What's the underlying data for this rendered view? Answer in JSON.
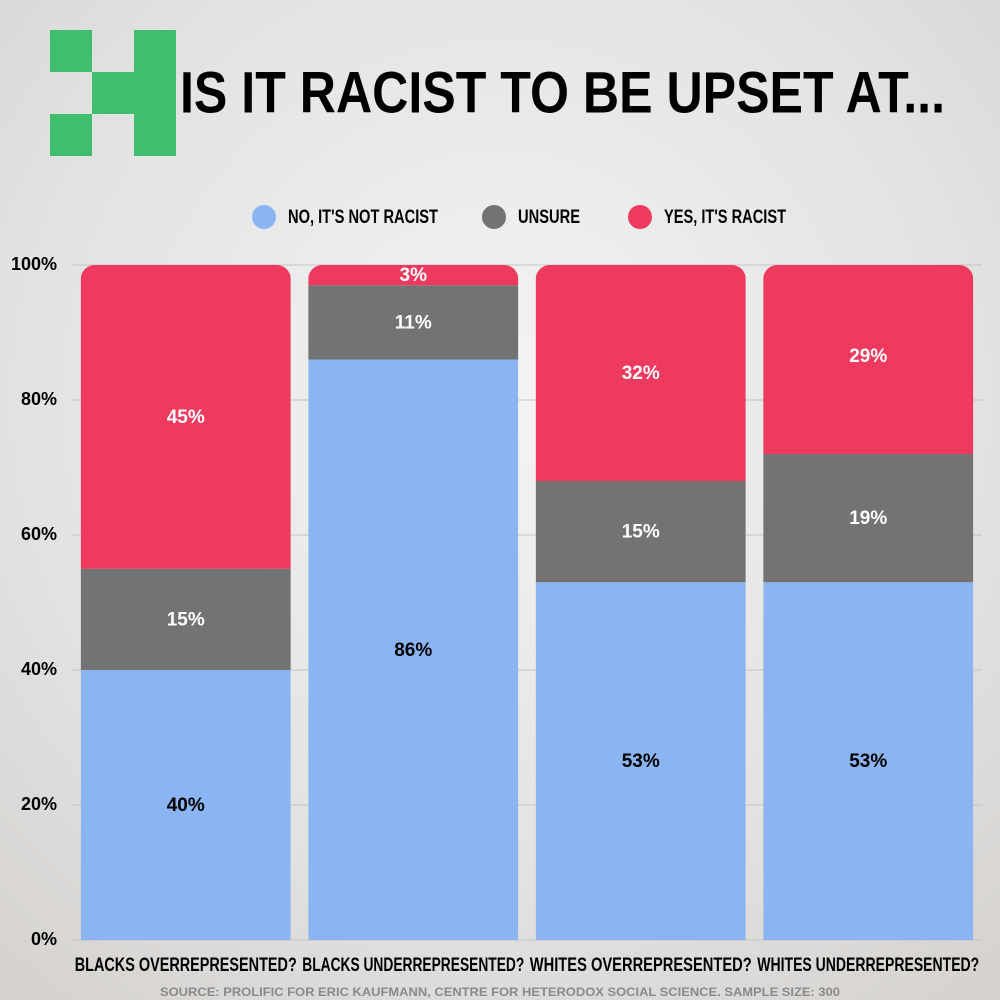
{
  "chart_data": {
    "type": "stacked-bar",
    "title": "IS IT RACIST TO BE UPSET AT...",
    "source": "SOURCE: PROLIFIC FOR ERIC KAUFMANN, CENTRE FOR HETERODOX SOCIAL SCIENCE. SAMPLE SIZE: 300",
    "categories": [
      "BLACKS OVERREPRESENTED?",
      "BLACKS UNDERREPRESENTED?",
      "WHITES OVERREPRESENTED?",
      "WHITES UNDERREPRESENTED?"
    ],
    "series": [
      {
        "name": "NO, IT'S NOT RACIST",
        "color": "#8ab4f2",
        "values": [
          40,
          86,
          53,
          53
        ],
        "value_labels": [
          "40%",
          "86%",
          "53%",
          "53%"
        ]
      },
      {
        "name": "UNSURE",
        "color": "#737373",
        "values": [
          15,
          11,
          15,
          19
        ],
        "value_labels": [
          "15%",
          "11%",
          "15%",
          "19%"
        ]
      },
      {
        "name": "YES, IT'S RACIST",
        "color": "#ef3a5f",
        "values": [
          45,
          3,
          32,
          29
        ],
        "value_labels": [
          "45%",
          "3%",
          "32%",
          "29%"
        ]
      }
    ],
    "ylim": [
      0,
      100
    ],
    "yticks": [
      {
        "value": 0,
        "label": "0%"
      },
      {
        "value": 20,
        "label": "20%"
      },
      {
        "value": 40,
        "label": "40%"
      },
      {
        "value": 60,
        "label": "60%"
      },
      {
        "value": 80,
        "label": "80%"
      },
      {
        "value": 100,
        "label": "100%"
      }
    ],
    "grid": true
  }
}
